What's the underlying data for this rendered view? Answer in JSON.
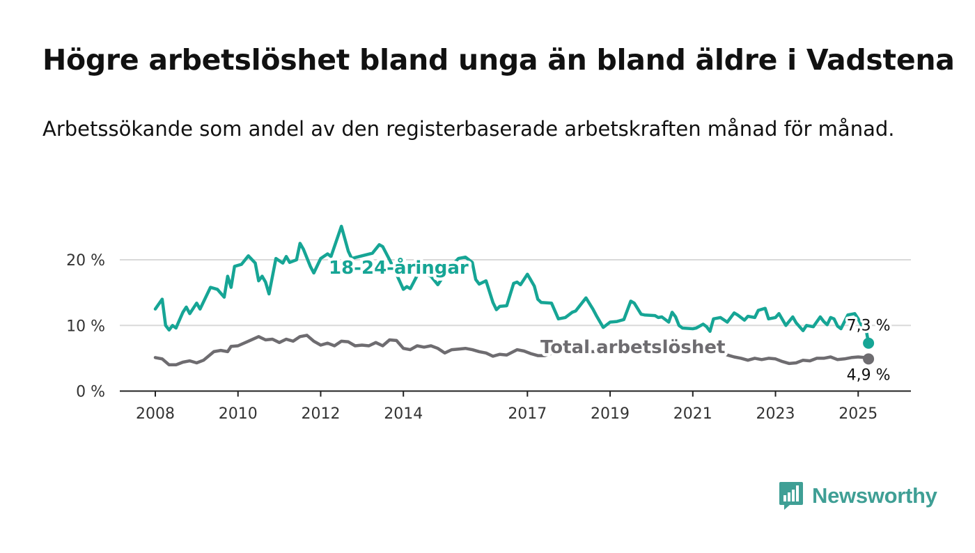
{
  "header": {
    "title": "Högre arbetslöshet bland unga än bland äldre i Vadstena",
    "subtitle": "Arbetssökande som andel av den registerbaserade arbetskraften månad för månad."
  },
  "brand": {
    "name": "Newsworthy",
    "color": "#3f9f95",
    "icon": "bar-chart-speech-bubble-icon"
  },
  "chart_data": {
    "type": "line",
    "x_start": "2008-01",
    "x_end": "2025-06",
    "x_tick_years": [
      2008,
      2010,
      2012,
      2014,
      2017,
      2019,
      2021,
      2023,
      2025
    ],
    "x_tick_labels": [
      "2008",
      "2010",
      "2012",
      "2014",
      "2017",
      "2019",
      "2021",
      "2023",
      "2025"
    ],
    "y_ticks": [
      0,
      10,
      20
    ],
    "y_tick_labels": [
      "0 %",
      "10 %",
      "20 %"
    ],
    "ylim": [
      0,
      25
    ],
    "grid": true,
    "series": [
      {
        "name": "18-24-åringar",
        "color": "#16a595",
        "end_label": "7,3 %",
        "anchors": [
          [
            "2008-01",
            12.5
          ],
          [
            "2008-03",
            14.0
          ],
          [
            "2008-04",
            10.0
          ],
          [
            "2008-05",
            9.3
          ],
          [
            "2008-06",
            10.0
          ],
          [
            "2008-07",
            9.6
          ],
          [
            "2008-09",
            12.0
          ],
          [
            "2008-10",
            12.8
          ],
          [
            "2008-11",
            11.8
          ],
          [
            "2009-01",
            13.4
          ],
          [
            "2009-02",
            12.5
          ],
          [
            "2009-05",
            15.8
          ],
          [
            "2009-07",
            15.5
          ],
          [
            "2009-09",
            14.3
          ],
          [
            "2009-10",
            17.5
          ],
          [
            "2009-11",
            15.8
          ],
          [
            "2009-12",
            19.0
          ],
          [
            "2010-02",
            19.3
          ],
          [
            "2010-04",
            20.6
          ],
          [
            "2010-06",
            19.5
          ],
          [
            "2010-07",
            16.8
          ],
          [
            "2010-08",
            17.5
          ],
          [
            "2010-09",
            16.6
          ],
          [
            "2010-10",
            14.8
          ],
          [
            "2010-12",
            20.2
          ],
          [
            "2011-02",
            19.5
          ],
          [
            "2011-03",
            20.5
          ],
          [
            "2011-04",
            19.6
          ],
          [
            "2011-06",
            20.0
          ],
          [
            "2011-07",
            22.5
          ],
          [
            "2011-08",
            21.6
          ],
          [
            "2011-10",
            19.0
          ],
          [
            "2011-11",
            18.0
          ],
          [
            "2012-01",
            20.2
          ],
          [
            "2012-03",
            20.9
          ],
          [
            "2012-04",
            20.5
          ],
          [
            "2012-07",
            25.1
          ],
          [
            "2012-09",
            21.3
          ],
          [
            "2012-10",
            20.2
          ],
          [
            "2013-01",
            20.6
          ],
          [
            "2013-04",
            21.0
          ],
          [
            "2013-06",
            22.3
          ],
          [
            "2013-07",
            22.0
          ],
          [
            "2013-09",
            20.0
          ],
          [
            "2013-11",
            17.8
          ],
          [
            "2014-01",
            15.5
          ],
          [
            "2014-02",
            15.9
          ],
          [
            "2014-03",
            15.6
          ],
          [
            "2014-05",
            17.6
          ],
          [
            "2014-07",
            18.0
          ],
          [
            "2014-09",
            17.5
          ],
          [
            "2014-11",
            16.2
          ],
          [
            "2015-02",
            18.6
          ],
          [
            "2015-05",
            20.2
          ],
          [
            "2015-07",
            20.4
          ],
          [
            "2015-09",
            19.6
          ],
          [
            "2015-10",
            17.0
          ],
          [
            "2015-11",
            16.3
          ],
          [
            "2016-01",
            16.8
          ],
          [
            "2016-03",
            13.5
          ],
          [
            "2016-04",
            12.4
          ],
          [
            "2016-05",
            12.9
          ],
          [
            "2016-07",
            13.0
          ],
          [
            "2016-09",
            16.4
          ],
          [
            "2016-10",
            16.6
          ],
          [
            "2016-11",
            16.2
          ],
          [
            "2017-01",
            17.8
          ],
          [
            "2017-03",
            16.0
          ],
          [
            "2017-04",
            14.0
          ],
          [
            "2017-05",
            13.5
          ],
          [
            "2017-08",
            13.4
          ],
          [
            "2017-10",
            11.0
          ],
          [
            "2017-12",
            11.2
          ],
          [
            "2018-02",
            12.0
          ],
          [
            "2018-03",
            12.2
          ],
          [
            "2018-06",
            14.2
          ],
          [
            "2018-08",
            12.5
          ],
          [
            "2018-09",
            11.5
          ],
          [
            "2018-11",
            9.7
          ],
          [
            "2019-01",
            10.5
          ],
          [
            "2019-03",
            10.6
          ],
          [
            "2019-05",
            10.9
          ],
          [
            "2019-07",
            13.7
          ],
          [
            "2019-08",
            13.4
          ],
          [
            "2019-10",
            11.7
          ],
          [
            "2019-11",
            11.6
          ],
          [
            "2020-02",
            11.5
          ],
          [
            "2020-03",
            11.2
          ],
          [
            "2020-04",
            11.3
          ],
          [
            "2020-06",
            10.5
          ],
          [
            "2020-07",
            12.0
          ],
          [
            "2020-08",
            11.3
          ],
          [
            "2020-09",
            10.0
          ],
          [
            "2020-10",
            9.6
          ],
          [
            "2021-01",
            9.5
          ],
          [
            "2021-02",
            9.6
          ],
          [
            "2021-04",
            10.2
          ],
          [
            "2021-05",
            9.8
          ],
          [
            "2021-06",
            9.1
          ],
          [
            "2021-07",
            11.0
          ],
          [
            "2021-09",
            11.2
          ],
          [
            "2021-11",
            10.5
          ],
          [
            "2022-01",
            11.9
          ],
          [
            "2022-02",
            11.6
          ],
          [
            "2022-04",
            10.8
          ],
          [
            "2022-05",
            11.4
          ],
          [
            "2022-07",
            11.2
          ],
          [
            "2022-08",
            12.3
          ],
          [
            "2022-10",
            12.6
          ],
          [
            "2022-11",
            11.0
          ],
          [
            "2023-01",
            11.2
          ],
          [
            "2023-02",
            11.8
          ],
          [
            "2023-04",
            10.0
          ],
          [
            "2023-06",
            11.3
          ],
          [
            "2023-07",
            10.4
          ],
          [
            "2023-09",
            9.2
          ],
          [
            "2023-10",
            10.0
          ],
          [
            "2023-12",
            9.8
          ],
          [
            "2024-02",
            11.3
          ],
          [
            "2024-03",
            10.6
          ],
          [
            "2024-04",
            10.1
          ],
          [
            "2024-05",
            11.2
          ],
          [
            "2024-06",
            11.0
          ],
          [
            "2024-07",
            9.9
          ],
          [
            "2024-08",
            9.5
          ],
          [
            "2024-10",
            11.6
          ],
          [
            "2024-12",
            11.8
          ],
          [
            "2025-01",
            11.0
          ],
          [
            "2025-02",
            10.0
          ],
          [
            "2025-03",
            10.2
          ],
          [
            "2025-04",
            7.3
          ]
        ]
      },
      {
        "name": "Total arbetslöshet",
        "color": "#6e6c70",
        "end_label": "4,9 %",
        "anchors": [
          [
            "2008-01",
            5.1
          ],
          [
            "2008-03",
            4.9
          ],
          [
            "2008-05",
            4.0
          ],
          [
            "2008-07",
            4.0
          ],
          [
            "2008-09",
            4.4
          ],
          [
            "2008-11",
            4.6
          ],
          [
            "2009-01",
            4.3
          ],
          [
            "2009-03",
            4.7
          ],
          [
            "2009-06",
            6.0
          ],
          [
            "2009-08",
            6.2
          ],
          [
            "2009-10",
            6.0
          ],
          [
            "2009-11",
            6.8
          ],
          [
            "2010-01",
            6.9
          ],
          [
            "2010-04",
            7.6
          ],
          [
            "2010-07",
            8.3
          ],
          [
            "2010-09",
            7.8
          ],
          [
            "2010-11",
            7.9
          ],
          [
            "2011-01",
            7.4
          ],
          [
            "2011-03",
            7.9
          ],
          [
            "2011-05",
            7.6
          ],
          [
            "2011-07",
            8.3
          ],
          [
            "2011-09",
            8.5
          ],
          [
            "2011-11",
            7.6
          ],
          [
            "2012-01",
            7.0
          ],
          [
            "2012-03",
            7.3
          ],
          [
            "2012-05",
            6.9
          ],
          [
            "2012-07",
            7.6
          ],
          [
            "2012-09",
            7.5
          ],
          [
            "2012-11",
            6.9
          ],
          [
            "2013-01",
            7.0
          ],
          [
            "2013-03",
            6.9
          ],
          [
            "2013-05",
            7.4
          ],
          [
            "2013-07",
            6.9
          ],
          [
            "2013-09",
            7.8
          ],
          [
            "2013-11",
            7.7
          ],
          [
            "2014-01",
            6.5
          ],
          [
            "2014-03",
            6.3
          ],
          [
            "2014-05",
            6.9
          ],
          [
            "2014-07",
            6.7
          ],
          [
            "2014-09",
            6.9
          ],
          [
            "2014-11",
            6.5
          ],
          [
            "2015-01",
            5.8
          ],
          [
            "2015-03",
            6.3
          ],
          [
            "2015-05",
            6.4
          ],
          [
            "2015-07",
            6.5
          ],
          [
            "2015-09",
            6.3
          ],
          [
            "2015-11",
            6.0
          ],
          [
            "2016-01",
            5.8
          ],
          [
            "2016-03",
            5.3
          ],
          [
            "2016-05",
            5.6
          ],
          [
            "2016-07",
            5.5
          ],
          [
            "2016-10",
            6.3
          ],
          [
            "2016-12",
            6.1
          ],
          [
            "2017-02",
            5.7
          ],
          [
            "2017-04",
            5.4
          ],
          [
            "2017-06",
            5.4
          ],
          [
            "2017-09",
            5.9
          ],
          [
            "2017-11",
            6.3
          ],
          [
            "2018-01",
            6.0
          ],
          [
            "2018-03",
            6.0
          ],
          [
            "2021-09",
            6.0
          ],
          [
            "2021-11",
            5.5
          ],
          [
            "2022-01",
            5.2
          ],
          [
            "2022-03",
            5.0
          ],
          [
            "2022-05",
            4.7
          ],
          [
            "2022-07",
            5.0
          ],
          [
            "2022-09",
            4.8
          ],
          [
            "2022-11",
            5.0
          ],
          [
            "2023-01",
            4.9
          ],
          [
            "2023-03",
            4.5
          ],
          [
            "2023-05",
            4.2
          ],
          [
            "2023-07",
            4.3
          ],
          [
            "2023-09",
            4.7
          ],
          [
            "2023-11",
            4.6
          ],
          [
            "2024-01",
            5.0
          ],
          [
            "2024-03",
            5.0
          ],
          [
            "2024-05",
            5.2
          ],
          [
            "2024-07",
            4.8
          ],
          [
            "2024-09",
            4.9
          ],
          [
            "2024-11",
            5.1
          ],
          [
            "2025-01",
            5.2
          ],
          [
            "2025-03",
            5.1
          ],
          [
            "2025-04",
            4.9
          ]
        ]
      }
    ]
  }
}
